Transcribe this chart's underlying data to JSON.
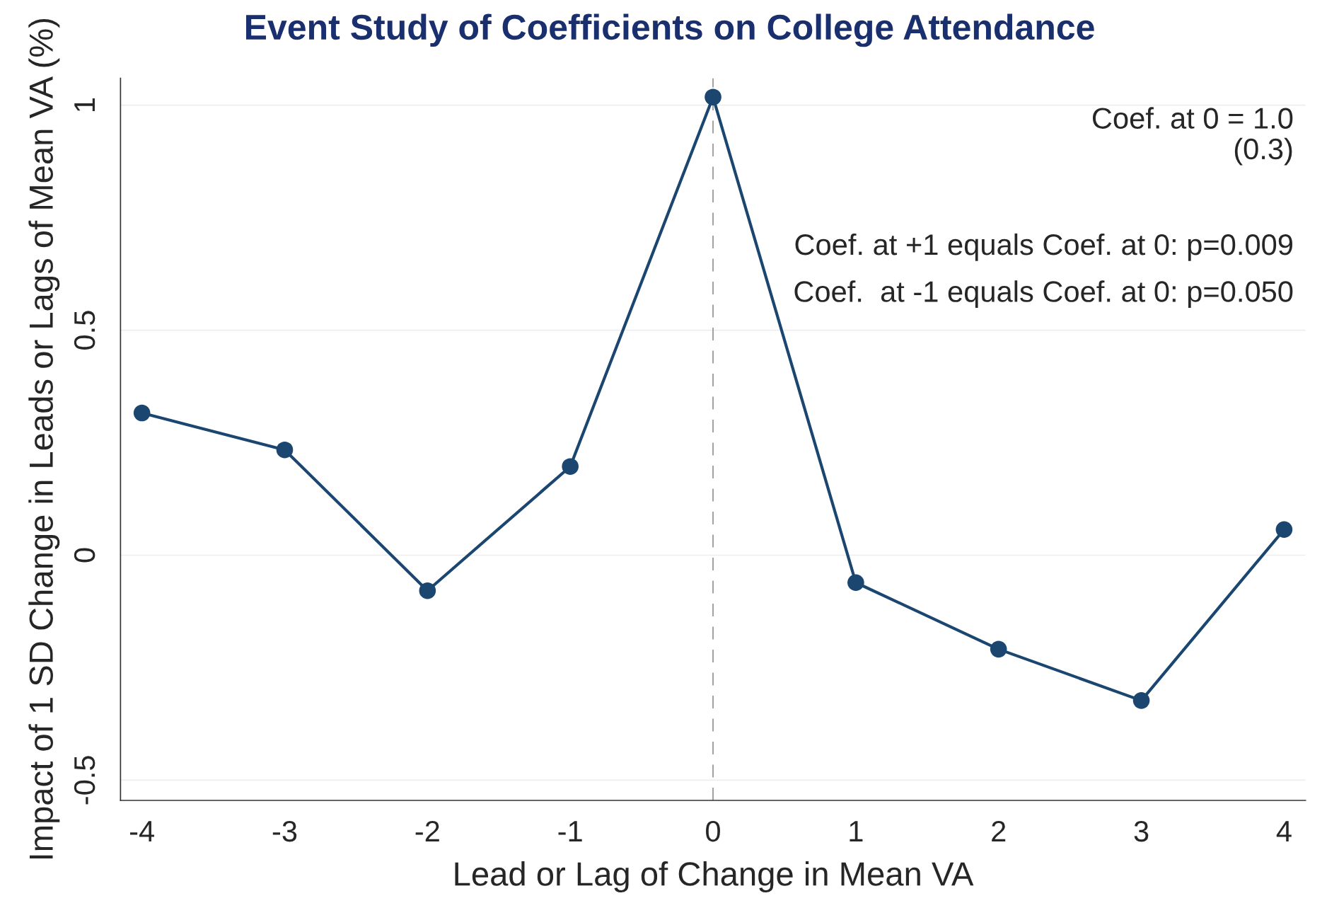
{
  "chart_data": {
    "type": "line",
    "title": "Event Study of Coefficients on College Attendance",
    "xlabel": "Lead or Lag of Change in Mean VA",
    "ylabel": "Impact of 1 SD Change in Leads or Lags of Mean VA (%)",
    "x": [
      -4,
      -3,
      -2,
      -1,
      0,
      1,
      2,
      3,
      4
    ],
    "series": [
      {
        "color": "#1a4670",
        "values": [
          0.316,
          0.234,
          -0.079,
          0.197,
          1.018,
          -0.061,
          -0.209,
          -0.323,
          0.057
        ]
      }
    ],
    "xlim": [
      -4.15,
      4.15
    ],
    "xticks": [
      -4,
      -3,
      -2,
      -1,
      0,
      1,
      2,
      3,
      4
    ],
    "ylim": [
      -0.545,
      1.06
    ],
    "yticks": [
      -0.5,
      0,
      0.5,
      1
    ],
    "ref_lines": [
      {
        "axis": "x",
        "value": 0,
        "color": "#999999",
        "line_style": "dashed"
      }
    ],
    "grid": "y",
    "marker": "circle",
    "line_style": "solid",
    "annotations": [
      "Coef. at 0 = 1.0\n(0.3)",
      "Coef. at +1 equals Coef. at 0: p=0.009",
      "Coef.  at -1 equals Coef. at 0: p=0.050"
    ]
  }
}
